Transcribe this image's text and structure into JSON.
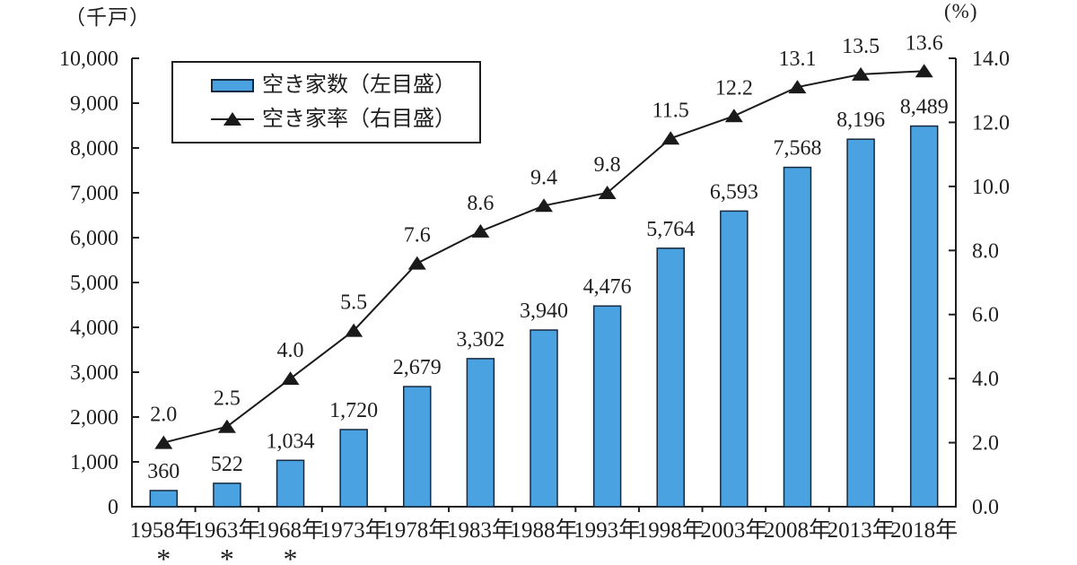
{
  "units": {
    "left": "（千戸）",
    "right": "(%)"
  },
  "legend": {
    "bar_label": "空き家数（左目盛）",
    "line_label": "空き家率（右目盛）"
  },
  "chart_data": {
    "type": "bar",
    "title": "",
    "xlabel": "",
    "ylabel_left": "（千戸）",
    "ylabel_right": "(%)",
    "categories": [
      "1958年",
      "1963年",
      "1968年",
      "1973年",
      "1978年",
      "1983年",
      "1988年",
      "1993年",
      "1998年",
      "2003年",
      "2008年",
      "2013年",
      "2018年"
    ],
    "category_footnotes": [
      "*",
      "*",
      "*",
      "",
      "",
      "",
      "",
      "",
      "",
      "",
      "",
      "",
      ""
    ],
    "series": [
      {
        "name": "空き家数（左目盛）",
        "type": "bar",
        "axis": "left",
        "color": "#4aa3e0",
        "border_color": "#16293f",
        "values": [
          360,
          522,
          1034,
          1720,
          2679,
          3302,
          3940,
          4476,
          5764,
          6593,
          7568,
          8196,
          8489
        ],
        "labels": [
          "360",
          "522",
          "1,034",
          "1,720",
          "2,679",
          "3,302",
          "3,940",
          "4,476",
          "5,764",
          "6,593",
          "7,568",
          "8,196",
          "8,489"
        ]
      },
      {
        "name": "空き家率（右目盛）",
        "type": "line",
        "axis": "right",
        "color": "#1a1a1a",
        "marker": "triangle",
        "values": [
          2.0,
          2.5,
          4.0,
          5.5,
          7.6,
          8.6,
          9.4,
          9.8,
          11.5,
          12.2,
          13.1,
          13.5,
          13.6
        ],
        "labels": [
          "2.0",
          "2.5",
          "4.0",
          "5.5",
          "7.6",
          "8.6",
          "9.4",
          "9.8",
          "11.5",
          "12.2",
          "13.1",
          "13.5",
          "13.6"
        ]
      }
    ],
    "left_axis": {
      "min": 0,
      "max": 10000,
      "step": 1000,
      "tick_labels": [
        "0",
        "1,000",
        "2,000",
        "3,000",
        "4,000",
        "5,000",
        "6,000",
        "7,000",
        "8,000",
        "9,000",
        "10,000"
      ]
    },
    "right_axis": {
      "min": 0,
      "max": 14,
      "step": 2,
      "tick_labels": [
        "0.0",
        "2.0",
        "4.0",
        "6.0",
        "8.0",
        "10.0",
        "12.0",
        "14.0"
      ]
    },
    "grid": false,
    "legend_position": "top-left-inside",
    "axis_color": "#1f1f1f"
  }
}
